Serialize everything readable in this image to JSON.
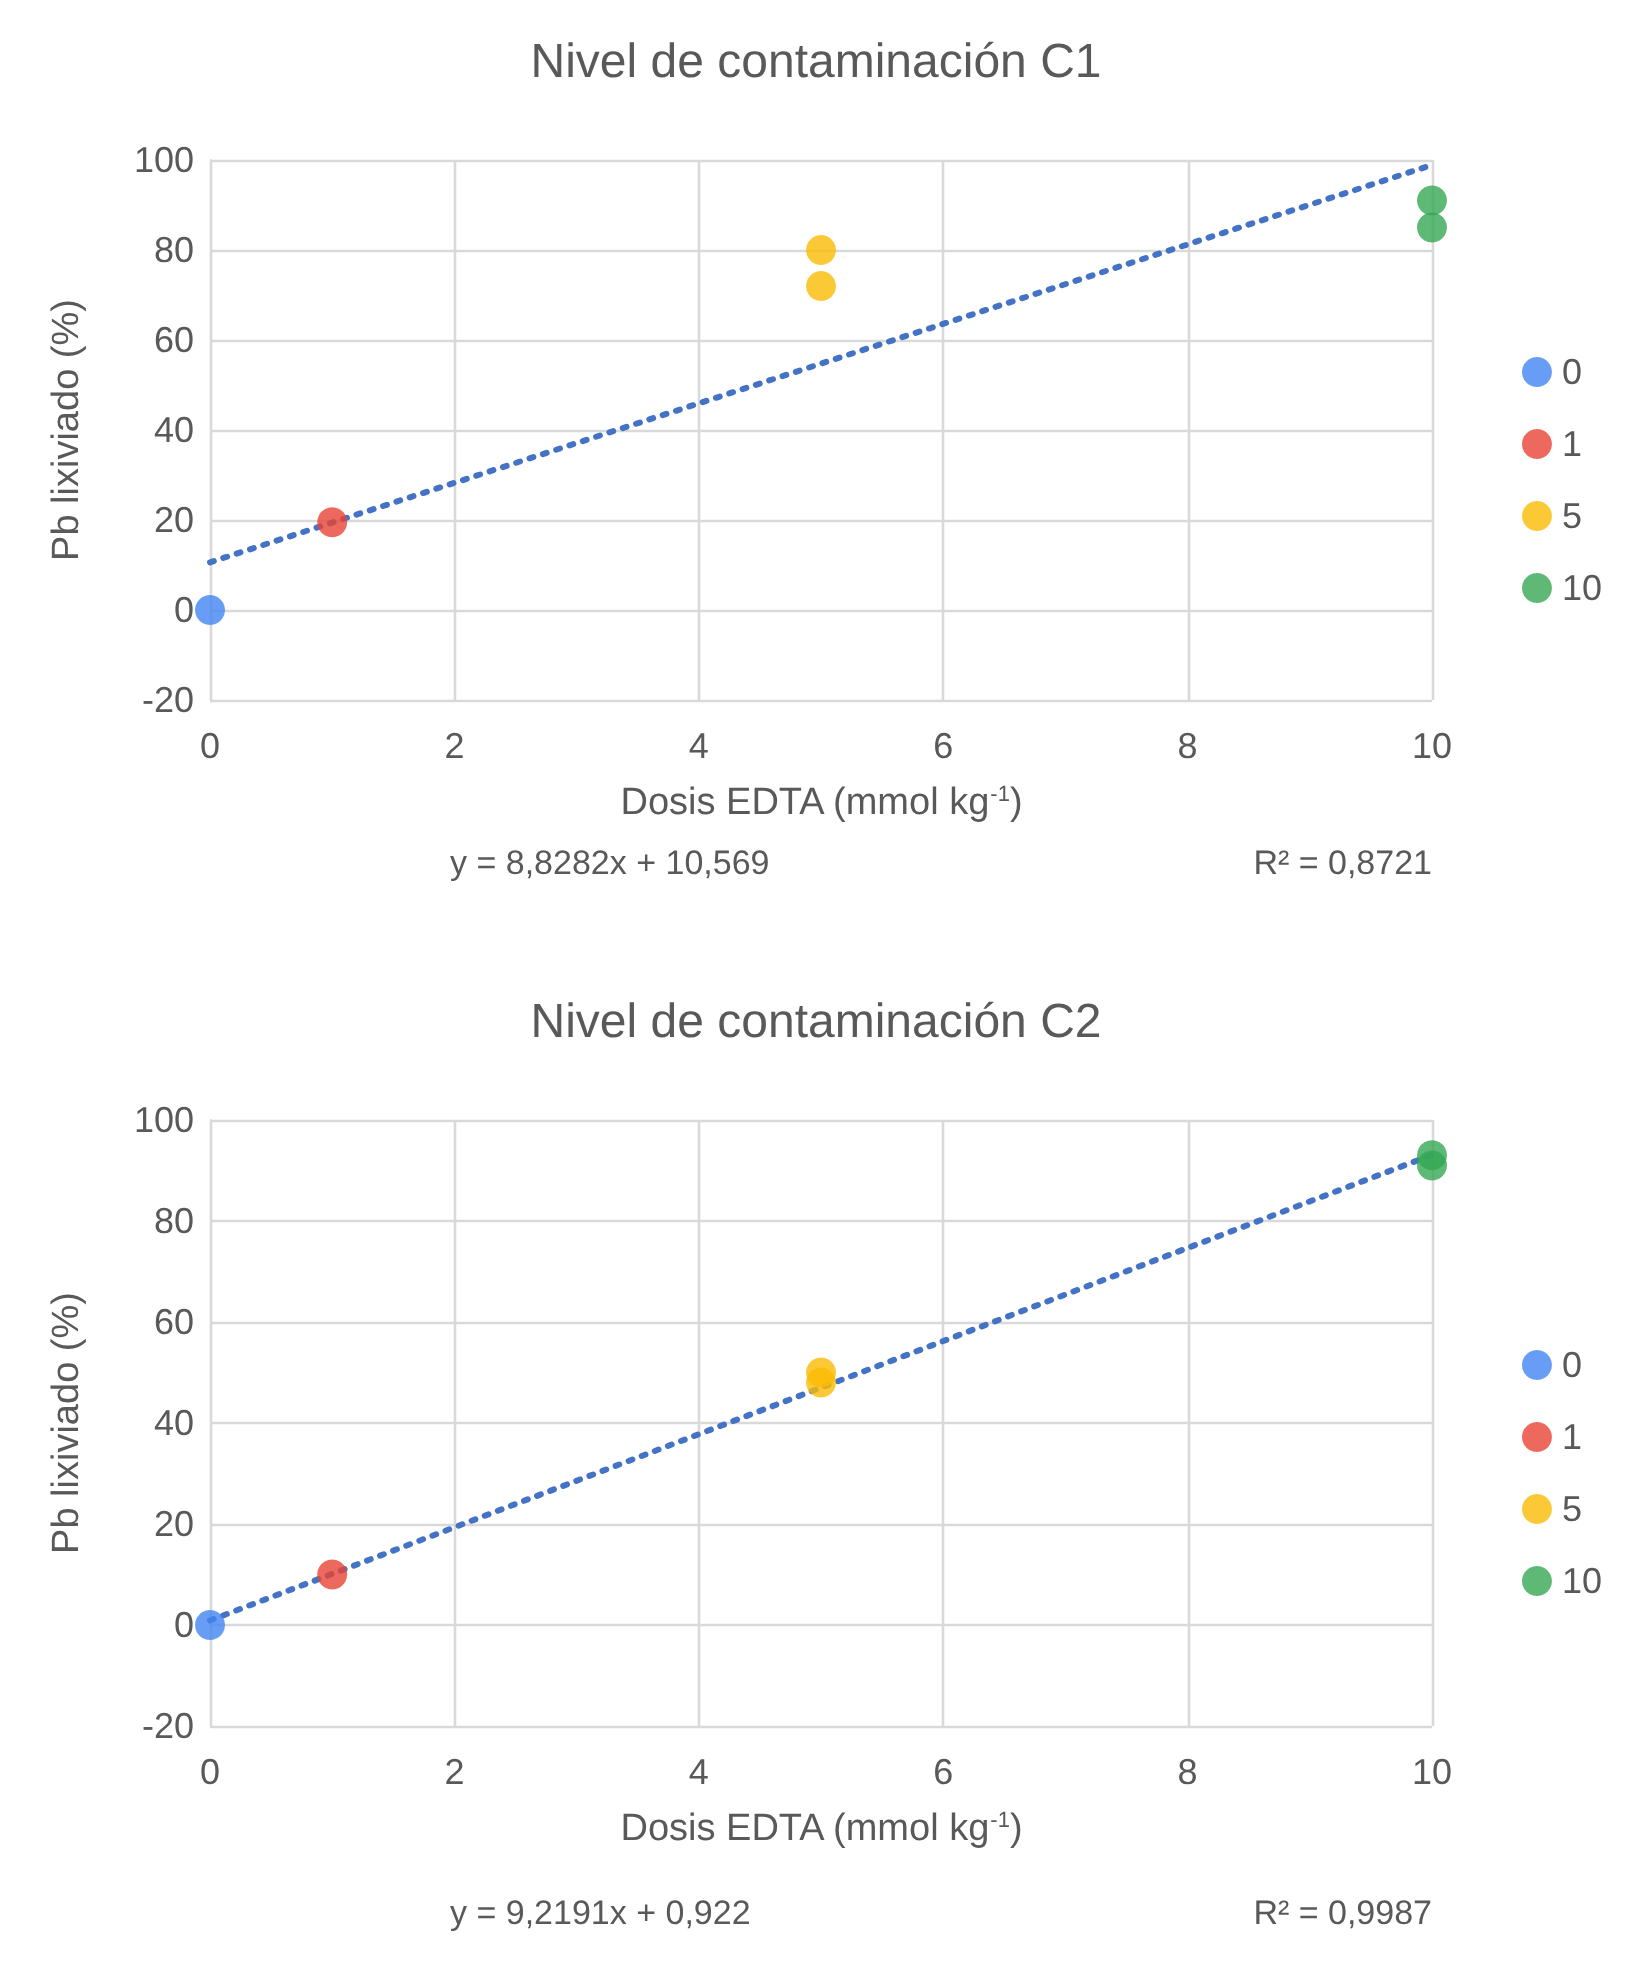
{
  "chart_data": [
    {
      "type": "scatter",
      "title": "Nivel de contaminación C1",
      "xlabel": "Dosis EDTA (mmol kg$^{-1}$)",
      "ylabel": "Pb lixiviado (%)",
      "series": [
        {
          "name": "0",
          "color": "#4285f4",
          "x": [
            0
          ],
          "values": [
            0
          ]
        },
        {
          "name": "1",
          "color": "#ea4335",
          "x": [
            1
          ],
          "values": [
            19.5
          ]
        },
        {
          "name": "5",
          "color": "#fbbc04",
          "x": [
            5,
            5
          ],
          "values": [
            80,
            72
          ]
        },
        {
          "name": "10",
          "color": "#34a853",
          "x": [
            10,
            10
          ],
          "values": [
            91,
            85
          ]
        },
        {
          "type": "line",
          "color": "#4472c4",
          "line_style": "dotted",
          "marker": "none",
          "x": [
            0,
            10
          ],
          "values": [
            10.6,
            98.9
          ]
        }
      ],
      "xlim": [
        0,
        10
      ],
      "xticks": [
        0,
        2,
        4,
        6,
        8,
        10
      ],
      "ylim": [
        -20,
        100
      ],
      "yticks": [
        -20,
        0,
        20,
        40,
        60,
        80,
        100
      ],
      "grid": true,
      "legend": "right",
      "marker": "circle",
      "annotations": [
        "y = 8,8282x + 10,569",
        "R² = 0,8721"
      ]
    },
    {
      "type": "scatter",
      "title": "Nivel de contaminación C2",
      "xlabel": "Dosis EDTA (mmol kg$^{-1}$)",
      "ylabel": "Pb lixiviado (%)",
      "series": [
        {
          "name": "0",
          "color": "#4285f4",
          "x": [
            0
          ],
          "values": [
            0
          ]
        },
        {
          "name": "1",
          "color": "#ea4335",
          "x": [
            1
          ],
          "values": [
            10
          ]
        },
        {
          "name": "5",
          "color": "#fbbc04",
          "x": [
            5,
            5
          ],
          "values": [
            50,
            48
          ]
        },
        {
          "name": "10",
          "color": "#34a853",
          "x": [
            10,
            10
          ],
          "values": [
            93,
            91
          ]
        },
        {
          "type": "line",
          "color": "#4472c4",
          "line_style": "dotted",
          "marker": "none",
          "x": [
            0,
            10
          ],
          "values": [
            0.9,
            93.1
          ]
        }
      ],
      "xlim": [
        0,
        10
      ],
      "xticks": [
        0,
        2,
        4,
        6,
        8,
        10
      ],
      "ylim": [
        -20,
        100
      ],
      "yticks": [
        -20,
        0,
        20,
        40,
        60,
        80,
        100
      ],
      "grid": true,
      "legend": "right",
      "marker": "circle",
      "annotations": [
        "y = 9,2191x + 0,922",
        "R² = 0,9987"
      ]
    }
  ]
}
